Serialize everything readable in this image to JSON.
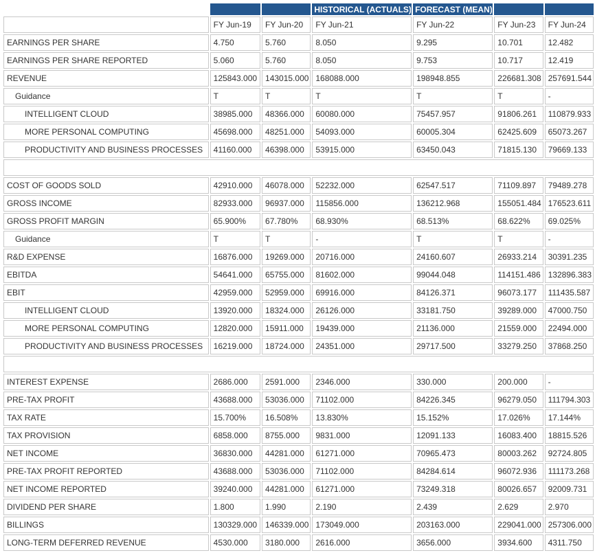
{
  "table": {
    "super_header": [
      null,
      null,
      "HISTORICAL (ACTUALS)",
      "FORECAST (MEAN)",
      null,
      null
    ],
    "columns": [
      "FY Jun-19",
      "FY Jun-20",
      "FY Jun-21",
      "FY Jun-22",
      "FY Jun-23",
      "FY Jun-24"
    ],
    "sections": [
      {
        "rows": [
          {
            "label": "EARNINGS PER SHARE",
            "level": 0,
            "values": [
              "4.750",
              "5.760",
              "8.050",
              "9.295",
              "10.701",
              "12.482"
            ]
          },
          {
            "label": "EARNINGS PER SHARE REPORTED",
            "level": 0,
            "values": [
              "5.060",
              "5.760",
              "8.050",
              "9.753",
              "10.717",
              "12.419"
            ]
          },
          {
            "label": "REVENUE",
            "level": 0,
            "values": [
              "125843.000",
              "143015.000",
              "168088.000",
              "198948.855",
              "226681.308",
              "257691.544"
            ]
          },
          {
            "label": "Guidance",
            "level": 1,
            "values": [
              "T",
              "T",
              "T",
              "T",
              "T",
              "-"
            ]
          },
          {
            "label": "INTELLIGENT CLOUD",
            "level": 2,
            "values": [
              "38985.000",
              "48366.000",
              "60080.000",
              "75457.957",
              "91806.261",
              "110879.933"
            ]
          },
          {
            "label": "MORE PERSONAL COMPUTING",
            "level": 2,
            "values": [
              "45698.000",
              "48251.000",
              "54093.000",
              "60005.304",
              "62425.609",
              "65073.267"
            ]
          },
          {
            "label": "PRODUCTIVITY AND BUSINESS PROCESSES",
            "level": 2,
            "values": [
              "41160.000",
              "46398.000",
              "53915.000",
              "63450.043",
              "71815.130",
              "79669.133"
            ]
          }
        ]
      },
      {
        "rows": [
          {
            "label": "COST OF GOODS SOLD",
            "level": 0,
            "values": [
              "42910.000",
              "46078.000",
              "52232.000",
              "62547.517",
              "71109.897",
              "79489.278"
            ]
          },
          {
            "label": "GROSS INCOME",
            "level": 0,
            "values": [
              "82933.000",
              "96937.000",
              "115856.000",
              "136212.968",
              "155051.484",
              "176523.611"
            ]
          },
          {
            "label": "GROSS PROFIT MARGIN",
            "level": 0,
            "values": [
              "65.900%",
              "67.780%",
              "68.930%",
              "68.513%",
              "68.622%",
              "69.025%"
            ]
          },
          {
            "label": "Guidance",
            "level": 1,
            "values": [
              "T",
              "T",
              "-",
              "T",
              "T",
              "-"
            ]
          },
          {
            "label": "R&D EXPENSE",
            "level": 0,
            "values": [
              "16876.000",
              "19269.000",
              "20716.000",
              "24160.607",
              "26933.214",
              "30391.235"
            ]
          },
          {
            "label": "EBITDA",
            "level": 0,
            "values": [
              "54641.000",
              "65755.000",
              "81602.000",
              "99044.048",
              "114151.486",
              "132896.383"
            ]
          },
          {
            "label": "EBIT",
            "level": 0,
            "values": [
              "42959.000",
              "52959.000",
              "69916.000",
              "84126.371",
              "96073.177",
              "111435.587"
            ]
          },
          {
            "label": "INTELLIGENT CLOUD",
            "level": 2,
            "values": [
              "13920.000",
              "18324.000",
              "26126.000",
              "33181.750",
              "39289.000",
              "47000.750"
            ]
          },
          {
            "label": "MORE PERSONAL COMPUTING",
            "level": 2,
            "values": [
              "12820.000",
              "15911.000",
              "19439.000",
              "21136.000",
              "21559.000",
              "22494.000"
            ]
          },
          {
            "label": "PRODUCTIVITY AND BUSINESS PROCESSES",
            "level": 2,
            "values": [
              "16219.000",
              "18724.000",
              "24351.000",
              "29717.500",
              "33279.250",
              "37868.250"
            ]
          }
        ]
      },
      {
        "rows": [
          {
            "label": "INTEREST EXPENSE",
            "level": 0,
            "values": [
              "2686.000",
              "2591.000",
              "2346.000",
              "330.000",
              "200.000",
              "-"
            ]
          },
          {
            "label": "PRE-TAX PROFIT",
            "level": 0,
            "values": [
              "43688.000",
              "53036.000",
              "71102.000",
              "84226.345",
              "96279.050",
              "111794.303"
            ]
          },
          {
            "label": "TAX RATE",
            "level": 0,
            "values": [
              "15.700%",
              "16.508%",
              "13.830%",
              "15.152%",
              "17.026%",
              "17.144%"
            ]
          },
          {
            "label": "TAX PROVISION",
            "level": 0,
            "values": [
              "6858.000",
              "8755.000",
              "9831.000",
              "12091.133",
              "16083.400",
              "18815.526"
            ]
          },
          {
            "label": "NET INCOME",
            "level": 0,
            "values": [
              "36830.000",
              "44281.000",
              "61271.000",
              "70965.473",
              "80003.262",
              "92724.805"
            ]
          },
          {
            "label": "PRE-TAX PROFIT REPORTED",
            "level": 0,
            "values": [
              "43688.000",
              "53036.000",
              "71102.000",
              "84284.614",
              "96072.936",
              "111173.268"
            ]
          },
          {
            "label": "NET INCOME REPORTED",
            "level": 0,
            "values": [
              "39240.000",
              "44281.000",
              "61271.000",
              "73249.318",
              "80026.657",
              "92009.731"
            ]
          },
          {
            "label": "DIVIDEND PER SHARE",
            "level": 0,
            "values": [
              "1.800",
              "1.990",
              "2.190",
              "2.439",
              "2.629",
              "2.970"
            ]
          },
          {
            "label": "BILLINGS",
            "level": 0,
            "values": [
              "130329.000",
              "146339.000",
              "173049.000",
              "203163.000",
              "229041.000",
              "257306.000"
            ]
          },
          {
            "label": "LONG-TERM DEFERRED REVENUE",
            "level": 0,
            "values": [
              "4530.000",
              "3180.000",
              "2616.000",
              "3656.000",
              "3934.600",
              "4311.750"
            ]
          }
        ]
      }
    ]
  }
}
